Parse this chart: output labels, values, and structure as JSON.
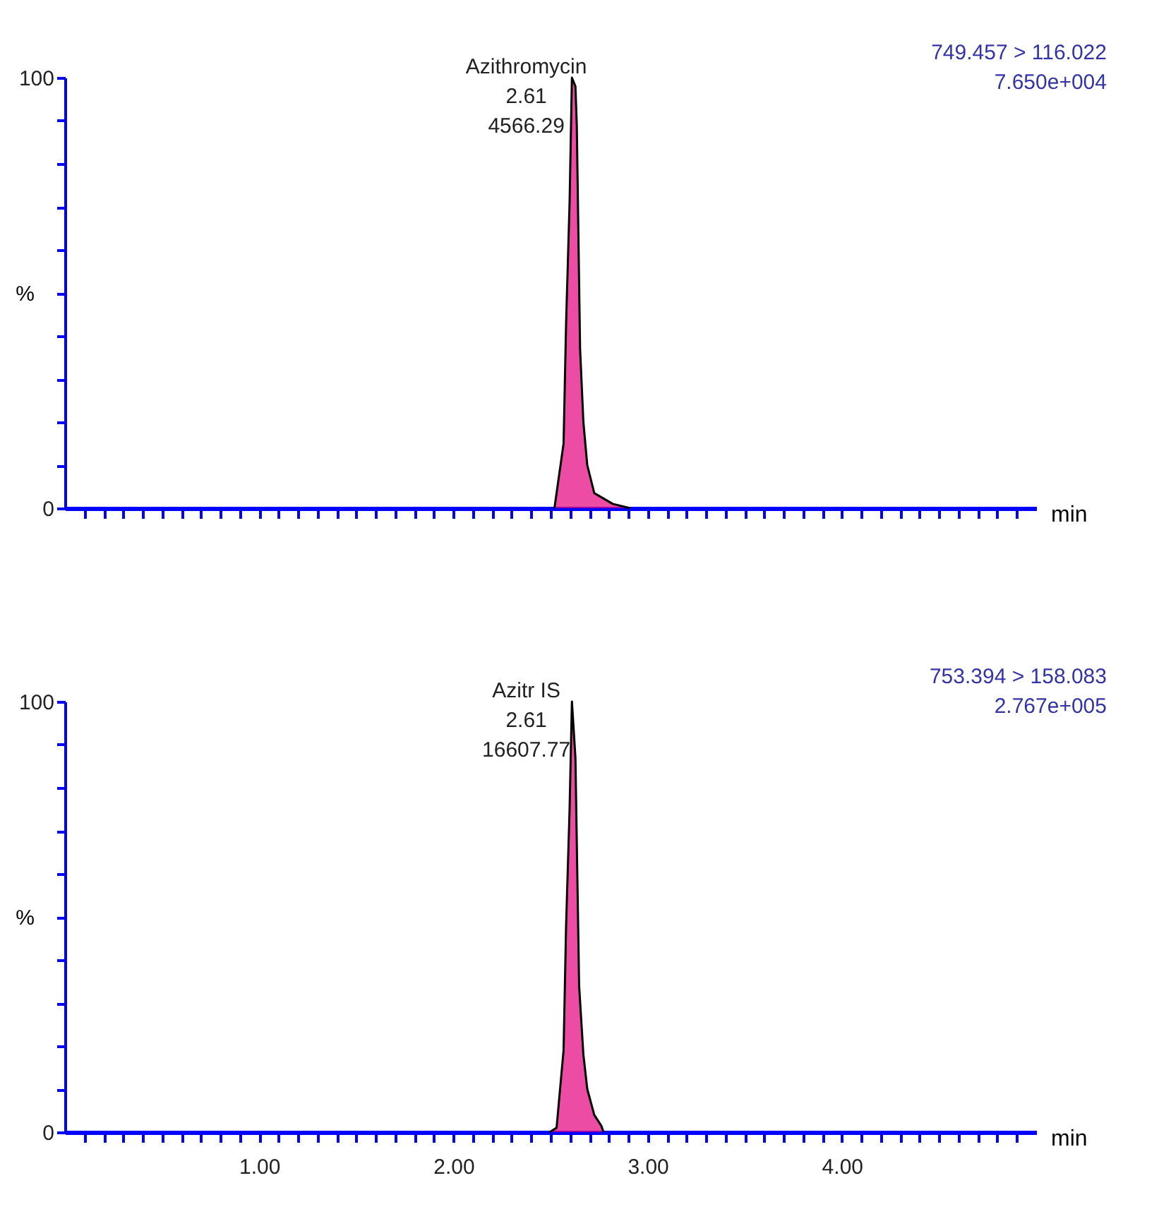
{
  "chart_data": [
    {
      "type": "area",
      "xlabel": "min",
      "ylabel": "%",
      "xlim": [
        0,
        5
      ],
      "ylim": [
        0,
        100
      ],
      "tick_labels": "y",
      "grid": false,
      "xticks": [
        {
          "value": 0.1,
          "label": null
        },
        {
          "value": 0.2,
          "label": null
        },
        {
          "value": 0.3,
          "label": null
        },
        {
          "value": 0.4,
          "label": null
        },
        {
          "value": 0.5,
          "label": null
        },
        {
          "value": 0.6,
          "label": null
        },
        {
          "value": 0.7,
          "label": null
        },
        {
          "value": 0.8,
          "label": null
        },
        {
          "value": 0.9,
          "label": null
        },
        {
          "value": 1,
          "label": null
        },
        {
          "value": 1.1,
          "label": null
        },
        {
          "value": 1.2,
          "label": null
        },
        {
          "value": 1.3,
          "label": null
        },
        {
          "value": 1.4,
          "label": null
        },
        {
          "value": 1.5,
          "label": null
        },
        {
          "value": 1.6,
          "label": null
        },
        {
          "value": 1.7,
          "label": null
        },
        {
          "value": 1.8,
          "label": null
        },
        {
          "value": 1.9,
          "label": null
        },
        {
          "value": 2,
          "label": null
        },
        {
          "value": 2.1,
          "label": null
        },
        {
          "value": 2.2,
          "label": null
        },
        {
          "value": 2.3,
          "label": null
        },
        {
          "value": 2.4,
          "label": null
        },
        {
          "value": 2.5,
          "label": null
        },
        {
          "value": 2.6,
          "label": null
        },
        {
          "value": 2.7,
          "label": null
        },
        {
          "value": 2.8,
          "label": null
        },
        {
          "value": 2.9,
          "label": null
        },
        {
          "value": 3,
          "label": null
        },
        {
          "value": 3.1,
          "label": null
        },
        {
          "value": 3.2,
          "label": null
        },
        {
          "value": 3.3,
          "label": null
        },
        {
          "value": 3.4,
          "label": null
        },
        {
          "value": 3.5,
          "label": null
        },
        {
          "value": 3.6,
          "label": null
        },
        {
          "value": 3.7,
          "label": null
        },
        {
          "value": 3.8,
          "label": null
        },
        {
          "value": 3.9,
          "label": null
        },
        {
          "value": 4,
          "label": null
        },
        {
          "value": 4.1,
          "label": null
        },
        {
          "value": 4.2,
          "label": null
        },
        {
          "value": 4.3,
          "label": null
        },
        {
          "value": 4.4,
          "label": null
        },
        {
          "value": 4.5,
          "label": null
        },
        {
          "value": 4.6,
          "label": null
        },
        {
          "value": 4.7,
          "label": null
        },
        {
          "value": 4.8,
          "label": null
        },
        {
          "value": 4.9,
          "label": null
        }
      ],
      "yticks": [
        0,
        {
          "value": 10,
          "label": null
        },
        {
          "value": 20,
          "label": null
        },
        {
          "value": 30,
          "label": null
        },
        {
          "value": 40,
          "label": null
        },
        {
          "value": 50,
          "label": null
        },
        {
          "value": 60,
          "label": null
        },
        {
          "value": 70,
          "label": null
        },
        {
          "value": 80,
          "label": null
        },
        {
          "value": 90,
          "label": null
        },
        100
      ],
      "series": [
        {
          "color": "#e6007e",
          "x": [
            2.52,
            2.567,
            2.58,
            2.598,
            2.61,
            2.628,
            2.635,
            2.652,
            2.669,
            2.689,
            2.725,
            2.82,
            2.91
          ],
          "values": [
            0,
            15,
            43,
            71,
            100,
            98,
            89,
            37,
            20,
            10,
            3.5,
            1,
            0
          ]
        }
      ],
      "annotations": [
        "Azithromycin",
        "2.61",
        "4566.29",
        "749.457 > 116.022",
        "7.650e+004"
      ]
    },
    {
      "type": "area",
      "xlabel": "min",
      "ylabel": "%",
      "xlim": [
        0,
        5
      ],
      "ylim": [
        0,
        100
      ],
      "grid": false,
      "xticks": [
        {
          "value": 0.1,
          "label": null
        },
        {
          "value": 0.2,
          "label": null
        },
        {
          "value": 0.3,
          "label": null
        },
        {
          "value": 0.4,
          "label": null
        },
        {
          "value": 0.5,
          "label": null
        },
        {
          "value": 0.6,
          "label": null
        },
        {
          "value": 0.7,
          "label": null
        },
        {
          "value": 0.8,
          "label": null
        },
        {
          "value": 0.9,
          "label": null
        },
        {
          "value": 1,
          "label": "1.00"
        },
        {
          "value": 1.1,
          "label": null
        },
        {
          "value": 1.2,
          "label": null
        },
        {
          "value": 1.3,
          "label": null
        },
        {
          "value": 1.4,
          "label": null
        },
        {
          "value": 1.5,
          "label": null
        },
        {
          "value": 1.6,
          "label": null
        },
        {
          "value": 1.7,
          "label": null
        },
        {
          "value": 1.8,
          "label": null
        },
        {
          "value": 1.9,
          "label": null
        },
        {
          "value": 2,
          "label": "2.00"
        },
        {
          "value": 2.1,
          "label": null
        },
        {
          "value": 2.2,
          "label": null
        },
        {
          "value": 2.3,
          "label": null
        },
        {
          "value": 2.4,
          "label": null
        },
        {
          "value": 2.5,
          "label": null
        },
        {
          "value": 2.6,
          "label": null
        },
        {
          "value": 2.7,
          "label": null
        },
        {
          "value": 2.8,
          "label": null
        },
        {
          "value": 2.9,
          "label": null
        },
        {
          "value": 3,
          "label": "3.00"
        },
        {
          "value": 3.1,
          "label": null
        },
        {
          "value": 3.2,
          "label": null
        },
        {
          "value": 3.3,
          "label": null
        },
        {
          "value": 3.4,
          "label": null
        },
        {
          "value": 3.5,
          "label": null
        },
        {
          "value": 3.6,
          "label": null
        },
        {
          "value": 3.7,
          "label": null
        },
        {
          "value": 3.8,
          "label": null
        },
        {
          "value": 3.9,
          "label": null
        },
        {
          "value": 4,
          "label": "4.00"
        },
        {
          "value": 4.1,
          "label": null
        },
        {
          "value": 4.2,
          "label": null
        },
        {
          "value": 4.3,
          "label": null
        },
        {
          "value": 4.4,
          "label": null
        },
        {
          "value": 4.5,
          "label": null
        },
        {
          "value": 4.6,
          "label": null
        },
        {
          "value": 4.7,
          "label": null
        },
        {
          "value": 4.8,
          "label": null
        },
        {
          "value": 4.9,
          "label": null
        }
      ],
      "yticks": [
        0,
        {
          "value": 10,
          "label": null
        },
        {
          "value": 20,
          "label": null
        },
        {
          "value": 30,
          "label": null
        },
        {
          "value": 40,
          "label": null
        },
        {
          "value": 50,
          "label": null
        },
        {
          "value": 60,
          "label": null
        },
        {
          "value": 70,
          "label": null
        },
        {
          "value": 80,
          "label": null
        },
        {
          "value": 90,
          "label": null
        },
        100
      ],
      "series": [
        {
          "color": "#e6007e",
          "x": [
            2.495,
            2.531,
            2.567,
            2.58,
            2.598,
            2.61,
            2.628,
            2.647,
            2.669,
            2.689,
            2.725,
            2.761,
            2.773
          ],
          "values": [
            0,
            1,
            19,
            48,
            75,
            100,
            87,
            34,
            18,
            10,
            4,
            1.5,
            0
          ]
        }
      ],
      "annotations": [
        "Azitr IS",
        "2.61",
        "16607.77",
        "753.394 > 158.083",
        "2.767e+005"
      ]
    }
  ]
}
